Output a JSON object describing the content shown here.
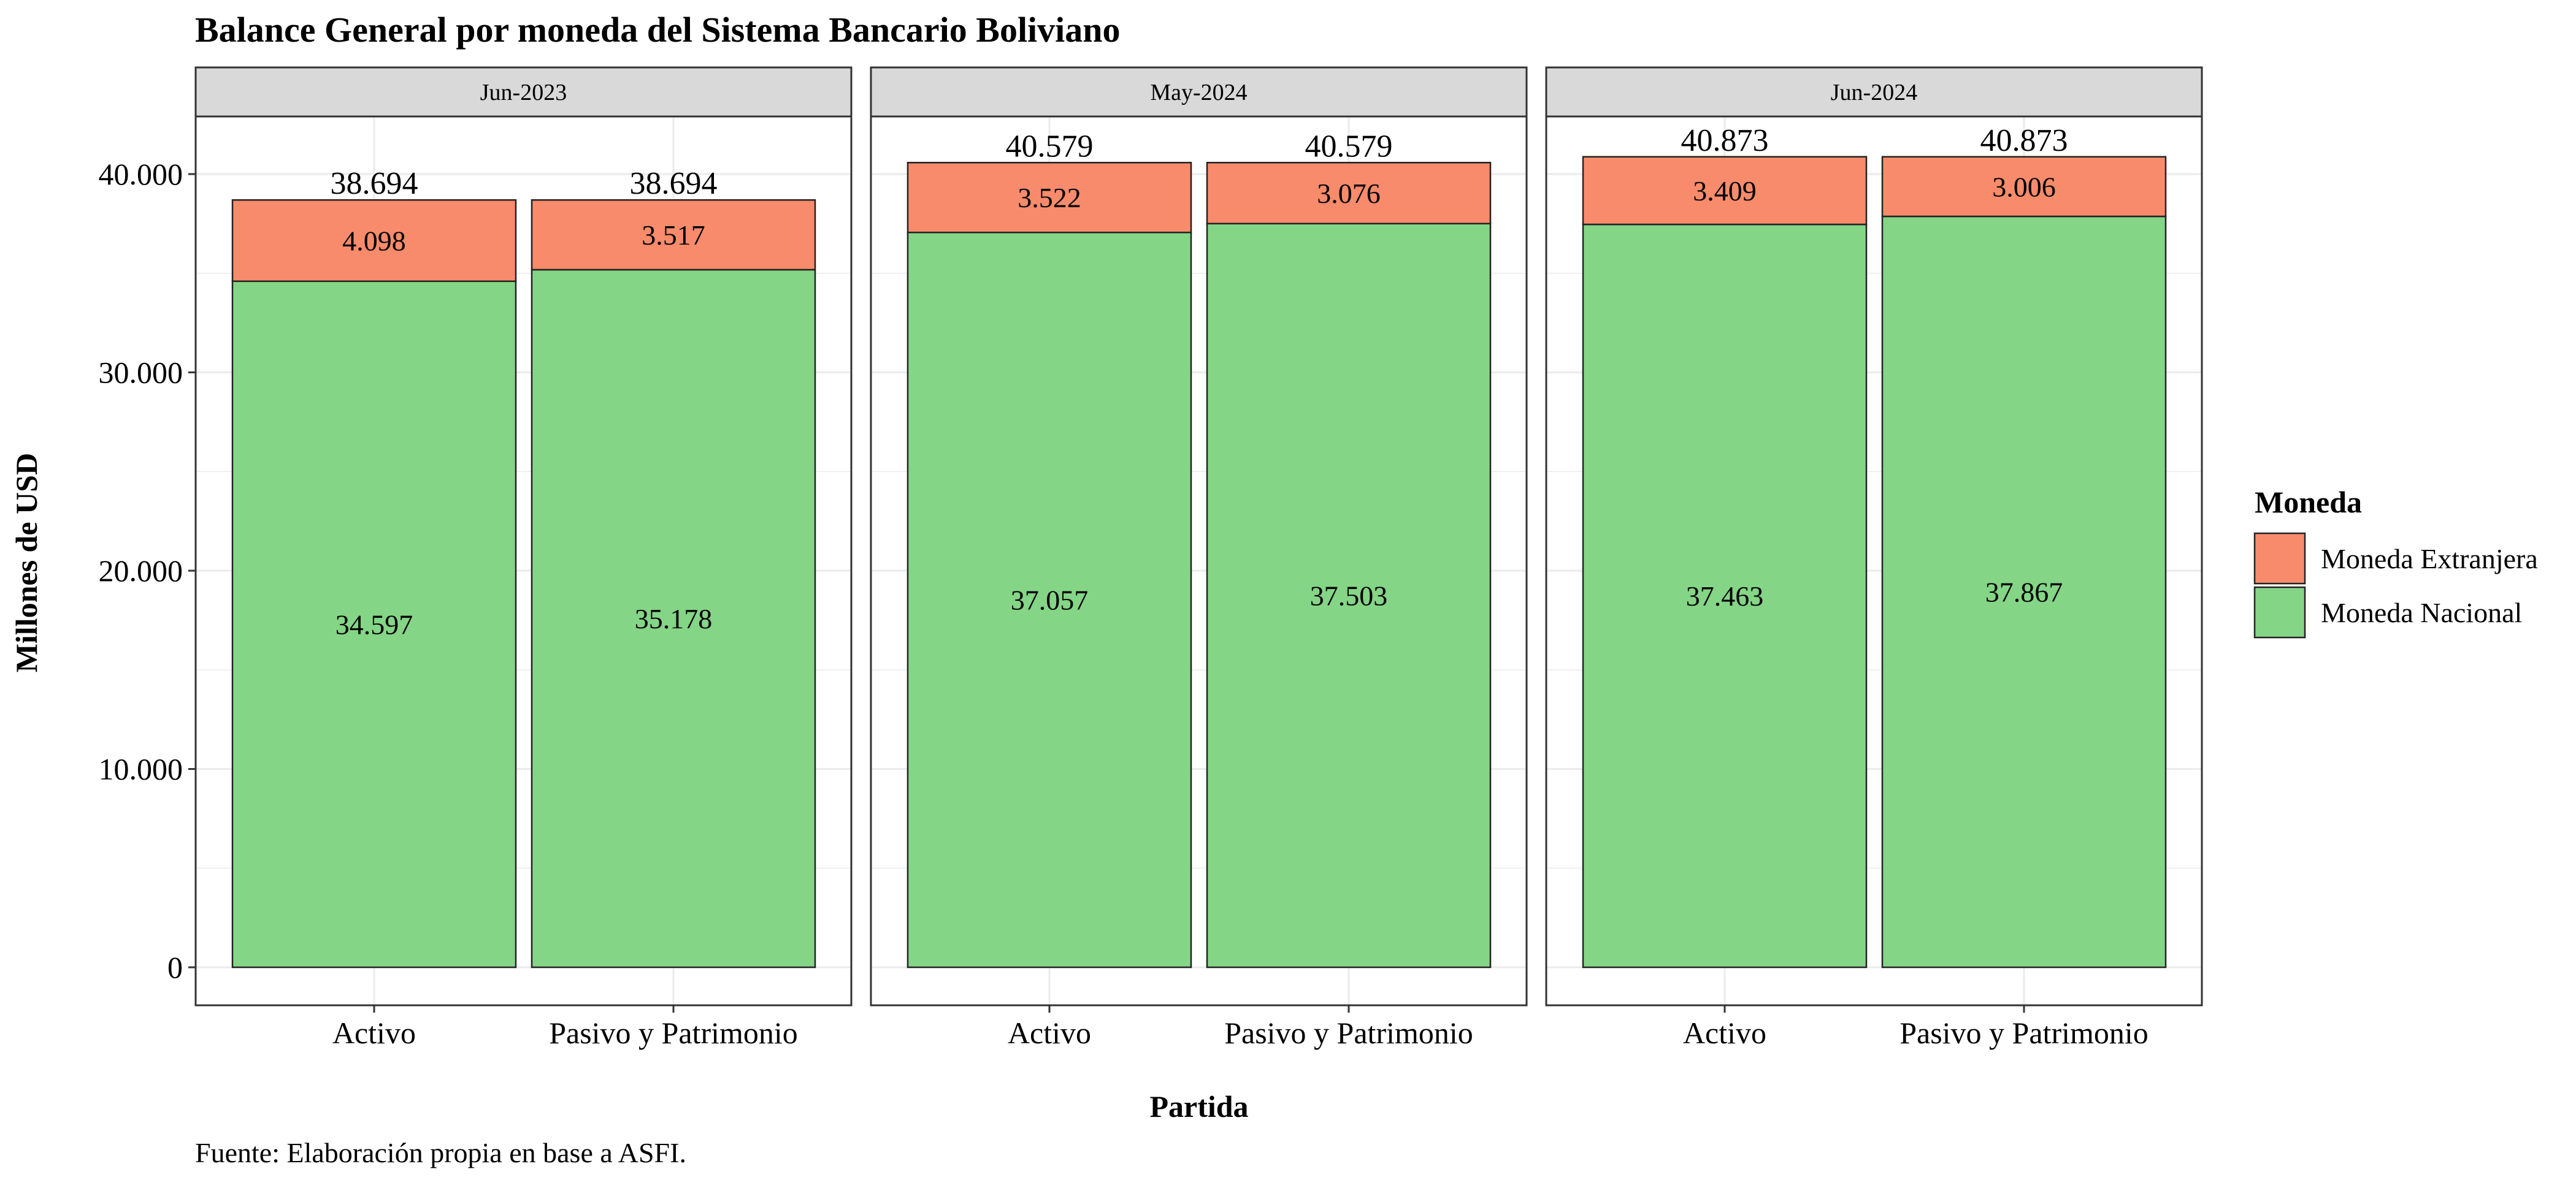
{
  "chart_data": {
    "type": "bar",
    "stacked": true,
    "title": "Balance General por moneda del Sistema Bancario Boliviano",
    "xlabel": "Partida",
    "ylabel": "Millones de USD",
    "caption": "Fuente: Elaboración propia en base a ASFI.",
    "ylim": [
      0,
      44000
    ],
    "yticks": [
      0,
      10000,
      20000,
      30000,
      40000
    ],
    "ytick_labels": [
      "0",
      "10.000",
      "20.000",
      "30.000",
      "40.000"
    ],
    "categories": [
      "Activo",
      "Pasivo y Patrimonio"
    ],
    "legend": {
      "title": "Moneda",
      "position": "right",
      "entries": [
        {
          "name": "Moneda Extranjera",
          "color": "#F78B6B"
        },
        {
          "name": "Moneda Nacional",
          "color": "#84D586"
        }
      ]
    },
    "panels": [
      {
        "label": "Jun-2023",
        "bars": [
          {
            "category": "Activo",
            "nacional": 34597,
            "extranjera": 4098,
            "total": 38694,
            "labels": {
              "nacional": "34.597",
              "extranjera": "4.098",
              "total": "38.694"
            }
          },
          {
            "category": "Pasivo y Patrimonio",
            "nacional": 35178,
            "extranjera": 3517,
            "total": 38694,
            "labels": {
              "nacional": "35.178",
              "extranjera": "3.517",
              "total": "38.694"
            }
          }
        ]
      },
      {
        "label": "May-2024",
        "bars": [
          {
            "category": "Activo",
            "nacional": 37057,
            "extranjera": 3522,
            "total": 40579,
            "labels": {
              "nacional": "37.057",
              "extranjera": "3.522",
              "total": "40.579"
            }
          },
          {
            "category": "Pasivo y Patrimonio",
            "nacional": 37503,
            "extranjera": 3076,
            "total": 40579,
            "labels": {
              "nacional": "37.503",
              "extranjera": "3.076",
              "total": "40.579"
            }
          }
        ]
      },
      {
        "label": "Jun-2024",
        "bars": [
          {
            "category": "Activo",
            "nacional": 37463,
            "extranjera": 3409,
            "total": 40873,
            "labels": {
              "nacional": "37.463",
              "extranjera": "3.409",
              "total": "40.873"
            }
          },
          {
            "category": "Pasivo y Patrimonio",
            "nacional": 37867,
            "extranjera": 3006,
            "total": 40873,
            "labels": {
              "nacional": "37.867",
              "extranjera": "3.006",
              "total": "40.873"
            }
          }
        ]
      }
    ],
    "colors": {
      "nacional": "#84D586",
      "extranjera": "#F78B6B",
      "strip_bg": "#D9D9D9",
      "grid": "#EBEBEB",
      "panel_border": "#333333"
    }
  }
}
